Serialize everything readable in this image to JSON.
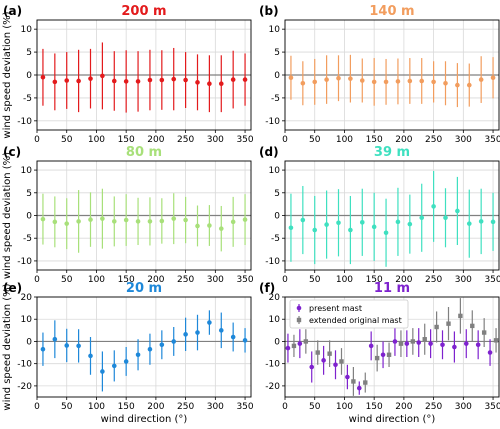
{
  "figure": {
    "shared_xlabel": "wind direction (°)",
    "shared_ylabel": "wind speed deviation (%)"
  },
  "chart_data": [
    {
      "type": "scatter",
      "panel_label": "(a)",
      "title": "200 m",
      "title_color": "#e31a1c",
      "xlabel": "",
      "ylabel": "wind speed deviation (%)",
      "xlim": [
        0,
        360
      ],
      "ylim": [
        -12,
        12
      ],
      "xticks": [
        0,
        50,
        100,
        150,
        200,
        250,
        300,
        350
      ],
      "yticks": [
        -10,
        -5,
        0,
        5,
        10
      ],
      "grid": true,
      "series": [
        {
          "color": "#e31a1c",
          "marker": "circle",
          "x": [
            10,
            30,
            50,
            70,
            90,
            110,
            130,
            150,
            170,
            190,
            210,
            230,
            250,
            270,
            290,
            310,
            330,
            350
          ],
          "y": [
            -0.5,
            -1.5,
            -1.2,
            -1.3,
            -0.8,
            -0.2,
            -1.3,
            -1.4,
            -1.4,
            -1.1,
            -1.1,
            -0.9,
            -1.1,
            -1.6,
            -1.9,
            -1.9,
            -1.0,
            -1.0
          ],
          "err": [
            6.2,
            6.2,
            6.2,
            6.8,
            6.5,
            7.3,
            6.5,
            6.8,
            6.6,
            6.6,
            6.5,
            6.8,
            6.1,
            6.1,
            6.2,
            6.2,
            6.3,
            5.7
          ]
        }
      ]
    },
    {
      "type": "scatter",
      "panel_label": "(b)",
      "title": "140 m",
      "title_color": "#f29d5e",
      "xlabel": "",
      "ylabel": "",
      "xlim": [
        0,
        360
      ],
      "ylim": [
        -12,
        12
      ],
      "xticks": [
        0,
        50,
        100,
        150,
        200,
        250,
        300,
        350
      ],
      "yticks": [
        -10,
        -5,
        0,
        5,
        10
      ],
      "grid": true,
      "series": [
        {
          "color": "#f29d5e",
          "marker": "circle",
          "x": [
            10,
            30,
            50,
            70,
            90,
            110,
            130,
            150,
            170,
            190,
            210,
            230,
            250,
            270,
            290,
            310,
            330,
            350
          ],
          "y": [
            -0.6,
            -1.8,
            -1.5,
            -1.0,
            -0.7,
            -0.8,
            -1.2,
            -1.5,
            -1.5,
            -1.4,
            -1.3,
            -1.3,
            -1.5,
            -1.8,
            -2.2,
            -2.2,
            -1.0,
            -0.6
          ],
          "err": [
            4.8,
            4.8,
            5.0,
            5.3,
            5.0,
            5.2,
            4.8,
            5.2,
            5.0,
            5.0,
            5.0,
            5.0,
            4.5,
            4.8,
            4.8,
            4.7,
            5.1,
            4.5
          ]
        }
      ]
    },
    {
      "type": "scatter",
      "panel_label": "(c)",
      "title": "80 m",
      "title_color": "#a8e07a",
      "xlabel": "",
      "ylabel": "wind speed deviation (%)",
      "xlim": [
        0,
        360
      ],
      "ylim": [
        -12,
        12
      ],
      "xticks": [
        0,
        50,
        100,
        150,
        200,
        250,
        300,
        350
      ],
      "yticks": [
        -10,
        -5,
        0,
        5,
        10
      ],
      "grid": true,
      "series": [
        {
          "color": "#a8e07a",
          "marker": "circle",
          "x": [
            10,
            30,
            50,
            70,
            90,
            110,
            130,
            150,
            170,
            190,
            210,
            230,
            250,
            270,
            290,
            310,
            330,
            350
          ],
          "y": [
            -0.8,
            -1.4,
            -1.8,
            -1.3,
            -0.9,
            -0.7,
            -1.3,
            -1.0,
            -1.3,
            -1.3,
            -1.2,
            -0.7,
            -1.0,
            -2.3,
            -2.2,
            -2.9,
            -1.4,
            -0.9
          ],
          "err": [
            5.6,
            5.6,
            5.6,
            6.9,
            6.0,
            6.6,
            5.5,
            5.7,
            5.2,
            5.3,
            5.0,
            5.6,
            5.1,
            4.5,
            4.5,
            5.0,
            5.5,
            5.6
          ]
        }
      ]
    },
    {
      "type": "scatter",
      "panel_label": "(d)",
      "title": "39 m",
      "title_color": "#3fe0c0",
      "xlabel": "",
      "ylabel": "",
      "xlim": [
        0,
        360
      ],
      "ylim": [
        -12,
        12
      ],
      "xticks": [
        0,
        50,
        100,
        150,
        200,
        250,
        300,
        350
      ],
      "yticks": [
        -10,
        -5,
        0,
        5,
        10
      ],
      "grid": true,
      "series": [
        {
          "color": "#3fe0c0",
          "marker": "circle",
          "x": [
            10,
            30,
            50,
            70,
            90,
            110,
            130,
            150,
            170,
            190,
            210,
            230,
            250,
            270,
            290,
            310,
            330,
            350
          ],
          "y": [
            -2.7,
            -1.0,
            -3.2,
            -2.0,
            -1.6,
            -3.2,
            -1.5,
            -2.5,
            -3.8,
            -1.4,
            -1.9,
            -0.5,
            2.0,
            -0.5,
            1.0,
            -1.8,
            -1.3,
            -1.4
          ],
          "err": [
            7.5,
            7.5,
            7.5,
            7.5,
            7.4,
            7.5,
            7.4,
            7.5,
            7.5,
            7.5,
            6.5,
            7.5,
            7.8,
            6.5,
            7.5,
            7.5,
            7.2,
            6.4
          ]
        }
      ]
    },
    {
      "type": "scatter",
      "panel_label": "(e)",
      "title": "20 m",
      "title_color": "#1e88d9",
      "xlabel": "wind direction (°)",
      "ylabel": "wind speed deviation (%)",
      "xlim": [
        0,
        360
      ],
      "ylim": [
        -25,
        20
      ],
      "xticks": [
        0,
        50,
        100,
        150,
        200,
        250,
        300,
        350
      ],
      "yticks": [
        -20,
        -10,
        0,
        10,
        20
      ],
      "grid": true,
      "series": [
        {
          "color": "#1e88d9",
          "marker": "circle",
          "x": [
            10,
            30,
            50,
            70,
            90,
            110,
            130,
            150,
            170,
            190,
            210,
            230,
            250,
            270,
            290,
            310,
            330,
            350
          ],
          "y": [
            -3.5,
            1.0,
            -1.8,
            -2.0,
            -6.5,
            -13.5,
            -11.0,
            -9.0,
            -6.0,
            -3.5,
            -1.5,
            0.0,
            3.2,
            4.0,
            8.5,
            5.0,
            2.0,
            0.5
          ],
          "err": [
            7.5,
            8.5,
            7.5,
            7.5,
            8.5,
            9.0,
            7.0,
            6.5,
            7.0,
            7.0,
            6.5,
            6.5,
            7.5,
            8.0,
            5.5,
            8.0,
            6.5,
            5.5
          ]
        }
      ]
    },
    {
      "type": "scatter",
      "panel_label": "(f)",
      "title": "11 m",
      "title_color": "#7e22ce",
      "xlabel": "wind direction (°)",
      "ylabel": "",
      "xlim": [
        0,
        360
      ],
      "ylim": [
        -25,
        20
      ],
      "xticks": [
        0,
        50,
        100,
        150,
        200,
        250,
        300,
        350
      ],
      "yticks": [
        -20,
        -10,
        0,
        10,
        20
      ],
      "grid": true,
      "legend": "top-left",
      "series": [
        {
          "name": "present mast",
          "color": "#7e22ce",
          "marker": "circle",
          "offset": -3,
          "x": [
            10,
            30,
            50,
            70,
            90,
            110,
            130,
            150,
            170,
            190,
            210,
            230,
            250,
            270,
            290,
            310,
            330,
            350
          ],
          "y": [
            -3.0,
            -1.0,
            -11.5,
            -8.5,
            -10.5,
            -16.0,
            -21.0,
            -2.0,
            -6.0,
            0.0,
            -1.0,
            -0.5,
            -1.0,
            -1.5,
            -2.5,
            -1.0,
            -1.5,
            -5.0
          ],
          "err": [
            6.5,
            6.5,
            7.0,
            6.5,
            6.5,
            5.5,
            3.0,
            6.5,
            6.0,
            6.5,
            6.0,
            6.5,
            6.5,
            6.5,
            7.0,
            6.5,
            6.5,
            6.0
          ]
        },
        {
          "name": "extended original mast",
          "color": "#808080",
          "marker": "square",
          "offset": 3,
          "x": [
            10,
            30,
            50,
            70,
            90,
            110,
            130,
            150,
            170,
            190,
            210,
            230,
            250,
            270,
            290,
            310,
            330,
            350
          ],
          "y": [
            -2.0,
            0.0,
            -5.0,
            -5.5,
            -9.0,
            -18.0,
            -18.5,
            -7.5,
            -6.0,
            -1.0,
            0.0,
            1.0,
            6.5,
            8.0,
            11.5,
            7.0,
            4.0,
            0.5
          ],
          "err": [
            5.0,
            5.5,
            5.5,
            6.0,
            6.0,
            6.5,
            4.5,
            6.0,
            5.5,
            6.0,
            6.0,
            7.0,
            7.0,
            7.5,
            8.0,
            7.0,
            6.5,
            5.5
          ]
        }
      ]
    }
  ]
}
